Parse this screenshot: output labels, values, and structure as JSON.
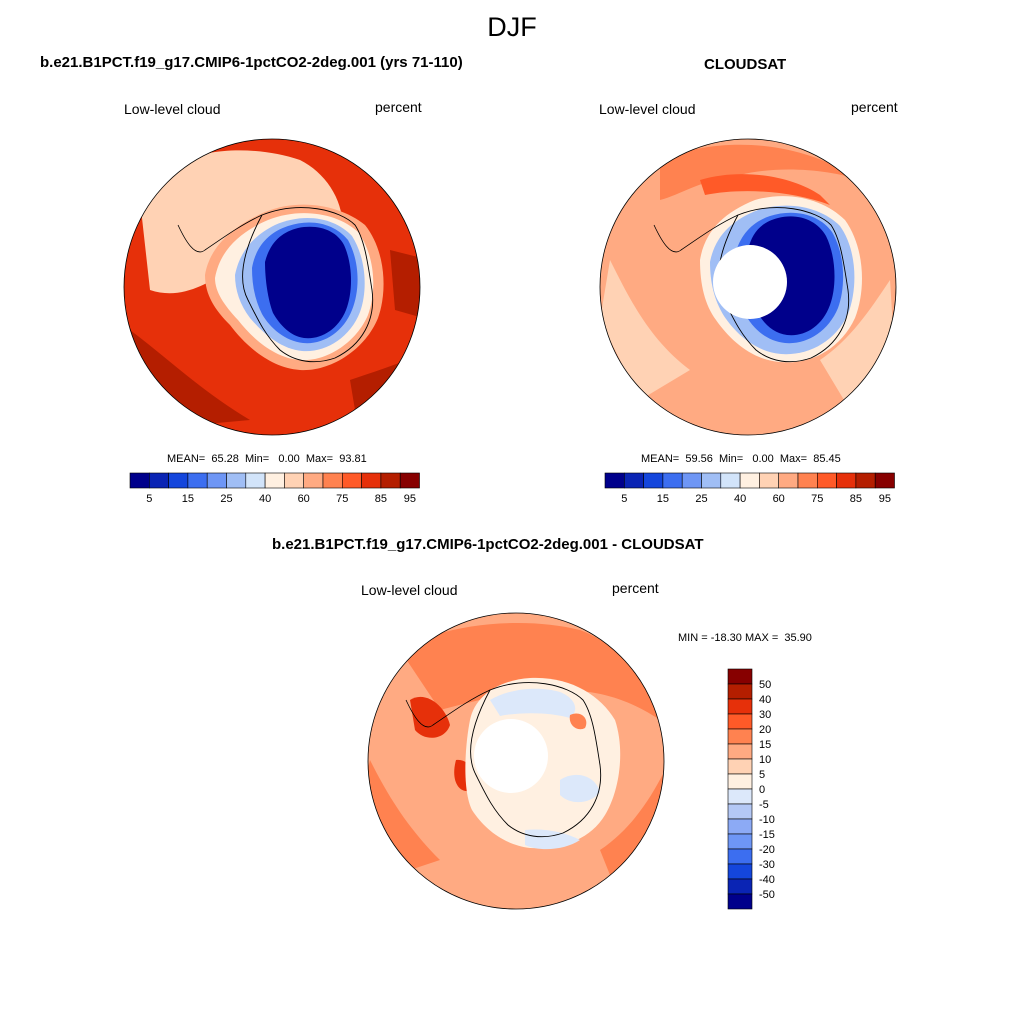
{
  "title": "DJF",
  "colors": {
    "abs_scale": [
      "#00008b",
      "#0a24b4",
      "#1446dc",
      "#3c6ef0",
      "#6e96f5",
      "#a0bef5",
      "#d2e4fa",
      "#fff0e1",
      "#ffd2b4",
      "#ffaa82",
      "#ff8250",
      "#ff5a28",
      "#e6300a",
      "#b41e00",
      "#870000"
    ],
    "diff_scale": [
      "#00008b",
      "#0a24b4",
      "#1446dc",
      "#3c6ef0",
      "#6e96f5",
      "#8caaf5",
      "#b4c8f5",
      "#dce8fa",
      "#fff0e1",
      "#ffd2b4",
      "#ffaa82",
      "#ff8250",
      "#ff5a28",
      "#e6300a",
      "#b41e00",
      "#870000"
    ]
  },
  "panels": [
    {
      "title": "b.e21.B1PCT.f19_g17.CMIP6-1pctCO2-2deg.001 (yrs 71-110)",
      "variable": "Low-level cloud",
      "units": "percent",
      "stats": {
        "mean_label": "MEAN=",
        "mean": "65.28",
        "min_label": "Min=",
        "min": "0.00",
        "max_label": "Max=",
        "max": "93.81"
      },
      "colorbar_ticks": [
        "5",
        "15",
        "25",
        "40",
        "60",
        "75",
        "85",
        "95"
      ],
      "pole_hole": false
    },
    {
      "title": "CLOUDSAT",
      "variable": "Low-level cloud",
      "units": "percent",
      "stats": {
        "mean_label": "MEAN=",
        "mean": "59.56",
        "min_label": "Min=",
        "min": "0.00",
        "max_label": "Max=",
        "max": "85.45"
      },
      "colorbar_ticks": [
        "5",
        "15",
        "25",
        "40",
        "60",
        "75",
        "85",
        "95"
      ],
      "pole_hole": true
    },
    {
      "title": "b.e21.B1PCT.f19_g17.CMIP6-1pctCO2-2deg.001 - CLOUDSAT",
      "variable": "Low-level cloud",
      "units": "percent",
      "stats_text": "MIN = -18.30 MAX =  35.90",
      "colorbar_ticks": [
        "50",
        "40",
        "30",
        "20",
        "15",
        "10",
        "5",
        "0",
        "-5",
        "-10",
        "-15",
        "-20",
        "-30",
        "-40",
        "-50"
      ],
      "pole_hole": true
    }
  ]
}
